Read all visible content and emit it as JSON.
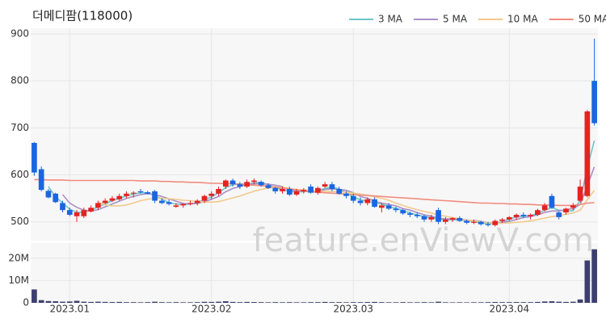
{
  "chart_data": {
    "type": "candlestick",
    "title": "더메디팜(118000)",
    "watermark": "feature.enViewV.com",
    "categories": [
      null,
      null,
      null,
      null,
      null,
      "2023.01",
      null,
      null,
      null,
      null,
      null,
      null,
      null,
      null,
      null,
      null,
      null,
      null,
      null,
      null,
      null,
      null,
      null,
      null,
      null,
      "2023.02",
      null,
      null,
      null,
      null,
      null,
      null,
      null,
      null,
      null,
      null,
      null,
      null,
      null,
      null,
      null,
      null,
      null,
      null,
      null,
      "2023.03",
      null,
      null,
      null,
      null,
      null,
      null,
      null,
      null,
      null,
      null,
      null,
      null,
      null,
      null,
      null,
      null,
      null,
      null,
      null,
      null,
      null,
      "2023.04",
      null,
      null,
      null,
      null,
      null,
      null,
      null,
      null,
      null,
      null,
      null,
      null
    ],
    "open": [
      668,
      612,
      566,
      560,
      540,
      525,
      512,
      512,
      522,
      530,
      540,
      545,
      548,
      555,
      560,
      565,
      563,
      565,
      545,
      542,
      532,
      535,
      538,
      540,
      545,
      555,
      560,
      575,
      588,
      580,
      575,
      585,
      585,
      578,
      572,
      565,
      570,
      558,
      565,
      575,
      562,
      575,
      580,
      570,
      560,
      555,
      545,
      540,
      548,
      530,
      535,
      528,
      525,
      518,
      515,
      512,
      505,
      525,
      500,
      505,
      508,
      502,
      498,
      500,
      495,
      493,
      502,
      505,
      510,
      515,
      512,
      515,
      525,
      555,
      520,
      520,
      530,
      545,
      555,
      800
    ],
    "high": [
      670,
      618,
      570,
      562,
      545,
      530,
      525,
      530,
      535,
      545,
      550,
      555,
      560,
      565,
      565,
      570,
      566,
      568,
      550,
      548,
      540,
      540,
      545,
      548,
      558,
      565,
      575,
      590,
      592,
      585,
      590,
      592,
      588,
      582,
      575,
      575,
      575,
      570,
      572,
      580,
      575,
      585,
      585,
      575,
      565,
      560,
      552,
      552,
      552,
      540,
      540,
      532,
      528,
      522,
      520,
      515,
      515,
      530,
      510,
      510,
      512,
      505,
      505,
      502,
      500,
      505,
      508,
      512,
      518,
      520,
      518,
      528,
      540,
      560,
      522,
      530,
      540,
      590,
      738,
      890
    ],
    "low": [
      598,
      565,
      550,
      540,
      520,
      512,
      500,
      508,
      520,
      525,
      538,
      542,
      545,
      550,
      552,
      560,
      558,
      540,
      538,
      535,
      530,
      530,
      535,
      535,
      540,
      548,
      555,
      570,
      575,
      570,
      572,
      580,
      575,
      570,
      560,
      560,
      555,
      555,
      560,
      560,
      558,
      572,
      565,
      558,
      550,
      540,
      535,
      535,
      530,
      520,
      525,
      520,
      515,
      510,
      508,
      500,
      500,
      495,
      495,
      500,
      500,
      495,
      495,
      492,
      490,
      490,
      498,
      502,
      505,
      508,
      505,
      512,
      522,
      528,
      505,
      515,
      525,
      542,
      552,
      705
    ],
    "close": [
      605,
      568,
      552,
      542,
      525,
      515,
      520,
      525,
      530,
      540,
      545,
      550,
      555,
      560,
      562,
      563,
      560,
      545,
      540,
      538,
      535,
      538,
      540,
      545,
      555,
      560,
      570,
      588,
      580,
      575,
      585,
      588,
      578,
      572,
      565,
      570,
      558,
      565,
      568,
      562,
      572,
      580,
      570,
      560,
      555,
      545,
      540,
      548,
      532,
      535,
      528,
      525,
      518,
      515,
      512,
      505,
      510,
      500,
      505,
      508,
      502,
      498,
      500,
      495,
      493,
      502,
      505,
      510,
      515,
      512,
      515,
      525,
      535,
      530,
      510,
      528,
      535,
      575,
      735,
      710
    ],
    "up_color": "#e52321",
    "down_color": "#1a66e0",
    "ylim": [
      460,
      912
    ],
    "yticks": [
      500,
      600,
      700,
      800,
      900
    ],
    "series": [
      {
        "name": "3 MA",
        "color": "#6cc6c6",
        "values": [
          null,
          null,
          575,
          554,
          540,
          527,
          520,
          520,
          525,
          532,
          538,
          545,
          550,
          555,
          559,
          562,
          562,
          556,
          548,
          541,
          538,
          537,
          538,
          541,
          547,
          553,
          562,
          573,
          579,
          581,
          580,
          583,
          584,
          579,
          572,
          569,
          564,
          564,
          564,
          565,
          567,
          571,
          574,
          570,
          562,
          553,
          547,
          544,
          540,
          538,
          532,
          529,
          524,
          519,
          515,
          511,
          509,
          505,
          505,
          504,
          505,
          503,
          500,
          498,
          496,
          497,
          500,
          506,
          510,
          512,
          514,
          517,
          525,
          530,
          525,
          523,
          524,
          546,
          615,
          673
        ]
      },
      {
        "name": "5 MA",
        "color": "#a98fc6",
        "values": [
          null,
          null,
          null,
          null,
          558,
          540,
          531,
          525,
          523,
          526,
          532,
          538,
          544,
          550,
          554,
          558,
          560,
          558,
          554,
          549,
          544,
          539,
          538,
          539,
          543,
          548,
          554,
          564,
          571,
          575,
          580,
          581,
          581,
          580,
          578,
          575,
          567,
          566,
          565,
          565,
          565,
          569,
          570,
          569,
          567,
          562,
          554,
          550,
          544,
          540,
          537,
          534,
          528,
          525,
          520,
          515,
          512,
          508,
          506,
          506,
          505,
          503,
          503,
          501,
          498,
          498,
          499,
          501,
          505,
          509,
          511,
          515,
          520,
          523,
          523,
          526,
          528,
          537,
          577,
          617
        ]
      },
      {
        "name": "10 MA",
        "color": "#f2c98c",
        "values": [
          null,
          null,
          null,
          null,
          null,
          null,
          null,
          null,
          null,
          542,
          536,
          534,
          534,
          536,
          540,
          545,
          548,
          550,
          550,
          549,
          548,
          546,
          545,
          543,
          542,
          542,
          543,
          547,
          551,
          555,
          560,
          565,
          569,
          572,
          573,
          574,
          571,
          569,
          568,
          567,
          565,
          565,
          565,
          564,
          563,
          561,
          559,
          557,
          553,
          550,
          546,
          540,
          535,
          530,
          526,
          522,
          519,
          514,
          512,
          509,
          507,
          504,
          502,
          500,
          498,
          498,
          497,
          498,
          499,
          500,
          502,
          505,
          508,
          511,
          513,
          516,
          519,
          525,
          547,
          567
        ]
      },
      {
        "name": "50 MA",
        "color": "#f28c7c",
        "values": [
          590,
          590,
          589,
          589,
          589,
          588,
          588,
          588,
          588,
          588,
          588,
          588,
          588,
          588,
          588,
          587,
          587,
          587,
          586,
          586,
          585,
          585,
          584,
          584,
          583,
          582,
          582,
          581,
          581,
          580,
          579,
          578,
          577,
          576,
          574,
          572,
          570,
          568,
          566,
          564,
          563,
          562,
          561,
          560,
          559,
          558,
          557,
          556,
          555,
          554,
          553,
          552,
          551,
          550,
          549,
          548,
          547,
          546,
          545,
          544,
          543,
          542,
          541,
          540,
          540,
          539,
          539,
          538,
          538,
          537,
          537,
          536,
          536,
          536,
          535,
          535,
          535,
          537,
          540,
          541
        ]
      }
    ],
    "volume": {
      "color": "#3c3f6e",
      "values": [
        6000000,
        1200000,
        800000,
        700000,
        500000,
        600000,
        900000,
        500000,
        400000,
        500000,
        400000,
        350000,
        400000,
        300000,
        300000,
        250000,
        300000,
        500000,
        300000,
        250000,
        300000,
        250000,
        250000,
        300000,
        450000,
        400000,
        500000,
        700000,
        400000,
        300000,
        400000,
        350000,
        300000,
        250000,
        300000,
        250000,
        300000,
        250000,
        250000,
        300000,
        300000,
        400000,
        300000,
        300000,
        250000,
        300000,
        300000,
        350000,
        400000,
        300000,
        250000,
        250000,
        300000,
        250000,
        250000,
        300000,
        250000,
        500000,
        250000,
        200000,
        250000,
        200000,
        250000,
        250000,
        300000,
        350000,
        300000,
        300000,
        350000,
        300000,
        300000,
        400000,
        600000,
        700000,
        500000,
        400000,
        500000,
        1500000,
        19000000,
        24000000
      ],
      "ylim": [
        0,
        26800000
      ],
      "yticks": [
        0,
        {
          "value": 10000000,
          "label": "10M"
        },
        {
          "value": 20000000,
          "label": "20M"
        }
      ]
    }
  }
}
